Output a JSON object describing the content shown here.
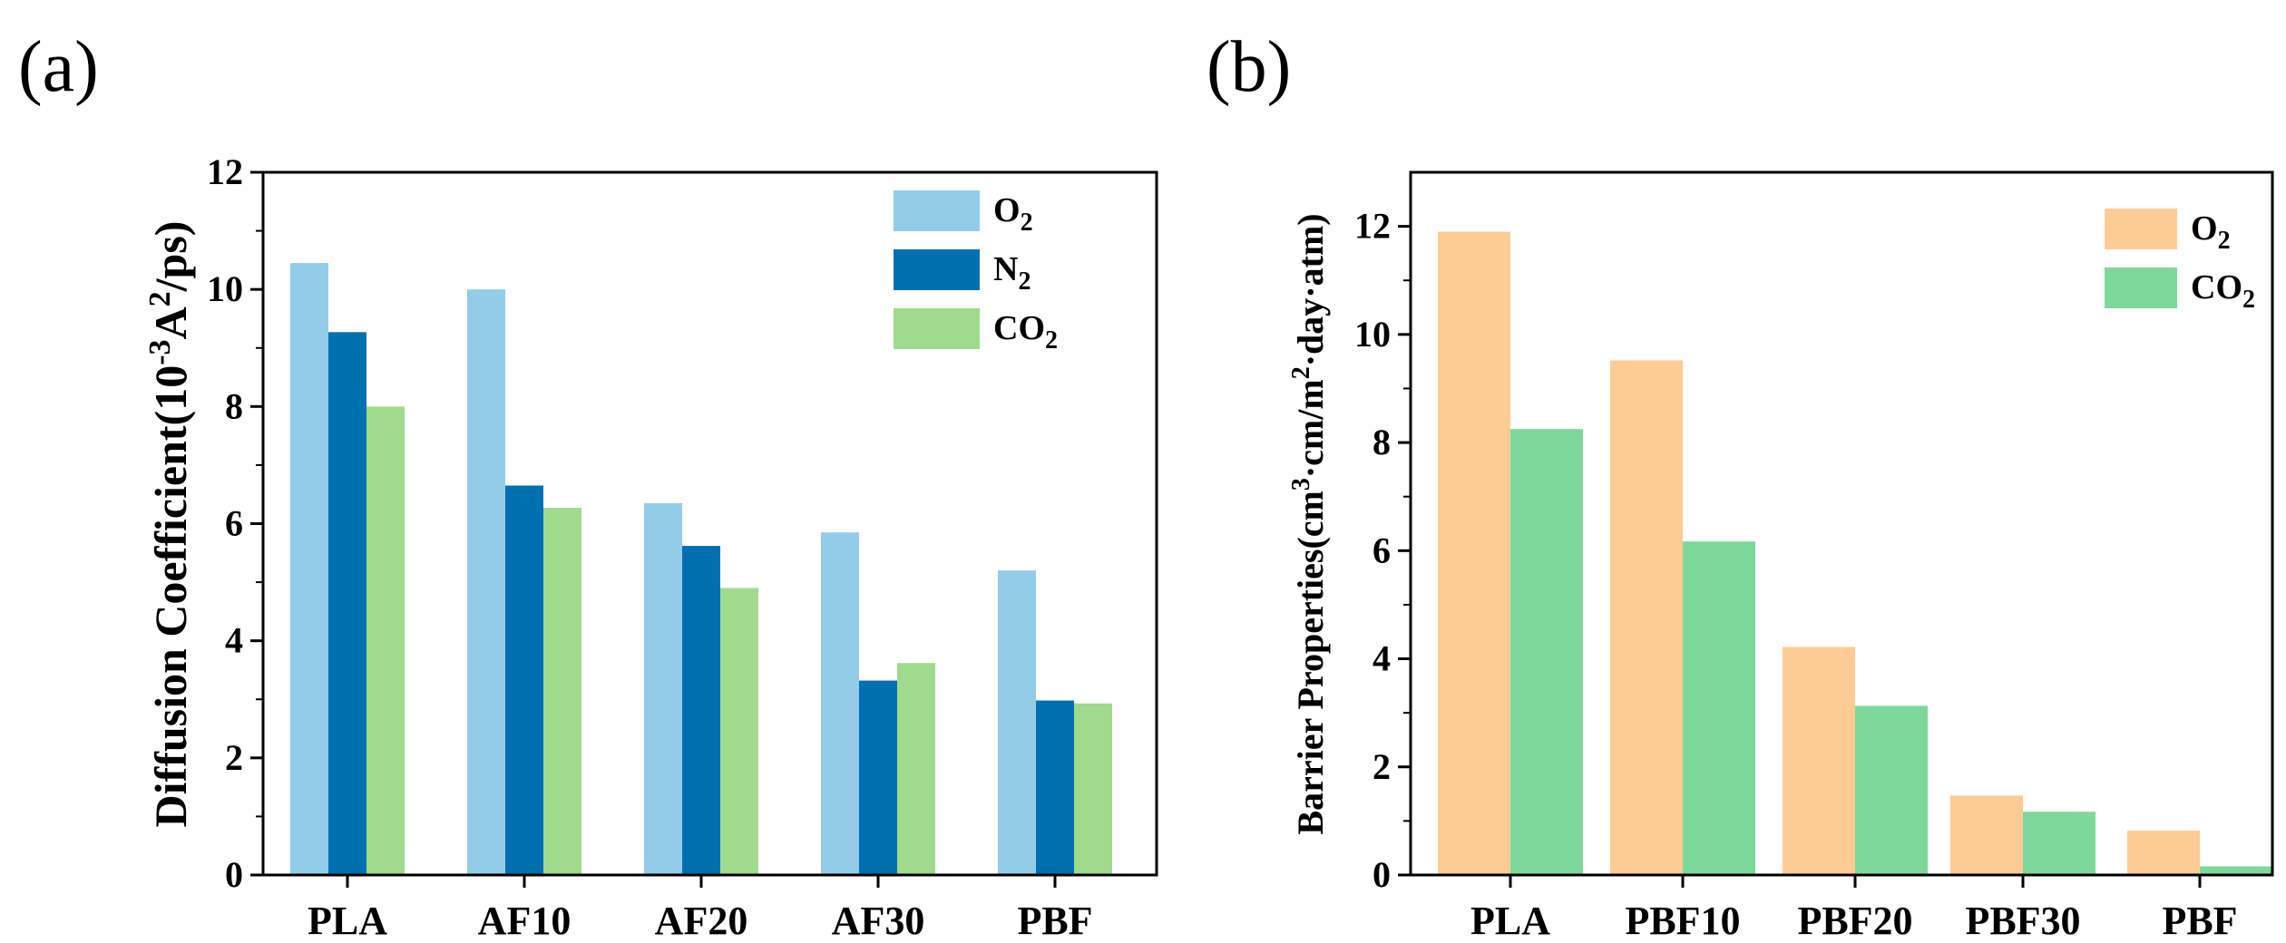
{
  "chart_data": [
    {
      "panel_label": "(a)",
      "type": "bar",
      "ylabel_main": "Diffusion Coefficient(10",
      "ylabel_sup1": "-3",
      "ylabel_mid": "A",
      "ylabel_sup2": "2",
      "ylabel_end": "/ps)",
      "xlabel": "",
      "ylim": [
        0,
        12
      ],
      "yticks": [
        "0",
        "2",
        "4",
        "6",
        "8",
        "10",
        "12"
      ],
      "categories": [
        "PLA",
        "AF10",
        "AF20",
        "AF30",
        "PBF"
      ],
      "series": [
        {
          "name": "O",
          "sub": "2",
          "color": "#93CCE8",
          "values": [
            10.45,
            10.0,
            6.35,
            5.85,
            5.2
          ]
        },
        {
          "name": "N",
          "sub": "2",
          "color": "#0070B0",
          "values": [
            9.27,
            6.65,
            5.62,
            3.32,
            2.98
          ]
        },
        {
          "name": "CO",
          "sub": "2",
          "color": "#A0DA8C",
          "values": [
            8.0,
            6.27,
            4.9,
            3.62,
            2.93
          ]
        }
      ]
    },
    {
      "panel_label": "(b)",
      "type": "bar",
      "ylabel_main": "Barrier Properties(cm",
      "ylabel_sup1": "3",
      "ylabel_mid": "·cm/m",
      "ylabel_sup2": "2",
      "ylabel_end": "·day·atm)",
      "xlabel": "",
      "ylim": [
        0,
        13
      ],
      "yticks": [
        "0",
        "2",
        "4",
        "6",
        "8",
        "10",
        "12"
      ],
      "categories": [
        "PLA",
        "PBF10",
        "PBF20",
        "PBF30",
        "PBF"
      ],
      "series": [
        {
          "name": "O",
          "sub": "2",
          "color": "#FDCC94",
          "values": [
            11.9,
            9.52,
            4.22,
            1.47,
            0.82
          ]
        },
        {
          "name": "CO",
          "sub": "2",
          "color": "#7FD89B",
          "values": [
            8.25,
            6.17,
            3.13,
            1.17,
            0.16
          ]
        }
      ]
    }
  ]
}
